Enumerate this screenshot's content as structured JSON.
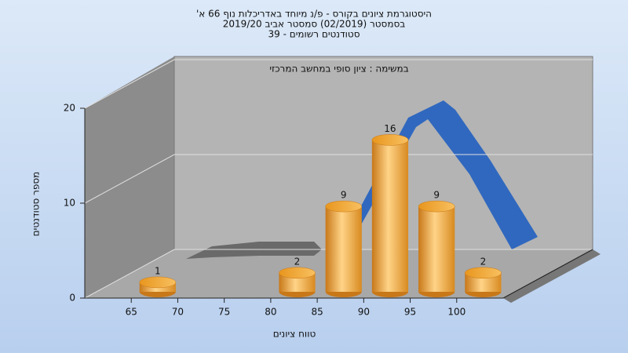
{
  "chart_data": {
    "type": "histogram",
    "title": [
      "היסטוגרמת ציונים בקורס - פ/נ מיוחד באדריכלות נוף 66 א'",
      "בסמסטר  (02/2019)  סמסטר אביב 2019/20",
      "סטודנטים רשומים - 39"
    ],
    "annotation": "במשימה : ציון סופי במחשב המרכזי",
    "x_label": "טווח ציונים",
    "y_label": "מספר סטודנטים",
    "bins": [
      65,
      70,
      75,
      80,
      85,
      90,
      95,
      100,
      105
    ],
    "values": [
      1,
      0,
      0,
      2,
      9,
      16,
      9,
      2
    ],
    "color": "#f0a030",
    "xlim": [
      60,
      105
    ],
    "xticks": [
      65,
      70,
      75,
      80,
      85,
      90,
      95,
      100
    ],
    "ylim": [
      0,
      20
    ],
    "yticks": [
      0,
      10,
      20
    ],
    "grid": true
  }
}
